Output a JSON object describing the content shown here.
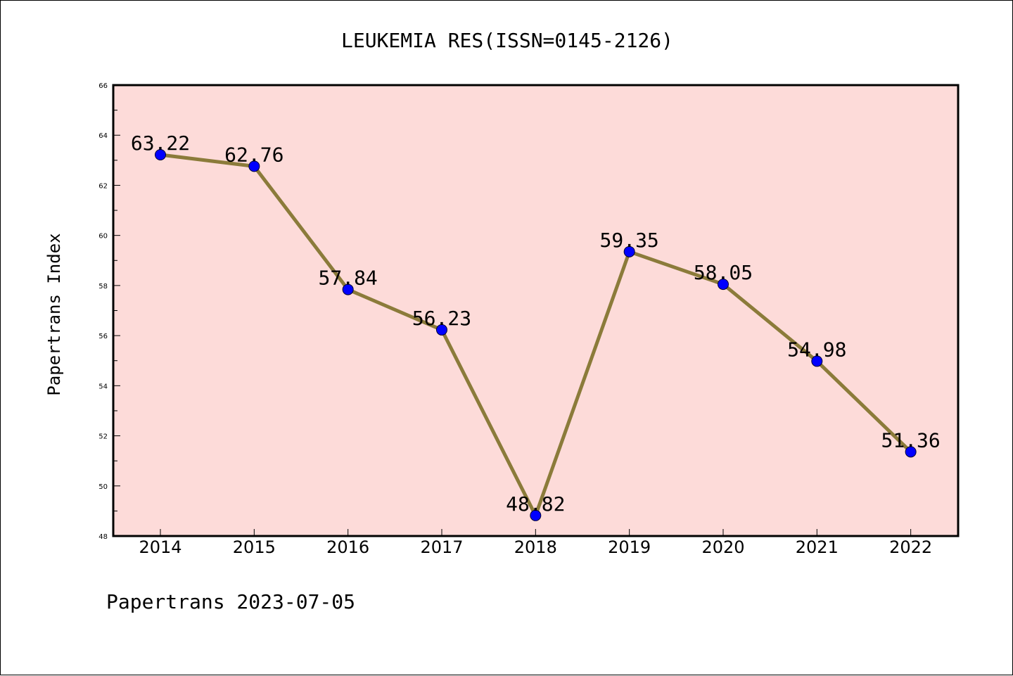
{
  "chart_data": {
    "type": "line",
    "title": "LEUKEMIA RES(ISSN=0145-2126)",
    "xlabel": "",
    "ylabel": "Papertrans Index",
    "footer": "Papertrans 2023-07-05",
    "categories": [
      "2014",
      "2015",
      "2016",
      "2017",
      "2018",
      "2019",
      "2020",
      "2021",
      "2022"
    ],
    "series": [
      {
        "values": [
          63.22,
          62.76,
          57.84,
          56.23,
          48.82,
          59.35,
          58.05,
          54.98,
          51.36
        ]
      }
    ],
    "data_labels": [
      "63.22",
      "62.76",
      "57.84",
      "56.23",
      "48.82",
      "59.35",
      "58.05",
      "54.98",
      "51.36"
    ],
    "y_ticks": [
      48,
      50,
      52,
      54,
      56,
      58,
      60,
      62,
      64,
      66
    ],
    "ylim": [
      48,
      66
    ],
    "grid": false,
    "legend": "none",
    "colors": {
      "plot_background": "#fddbd9",
      "line": "#8b7b3a",
      "marker": "#0000ff",
      "axis": "#000000"
    }
  }
}
